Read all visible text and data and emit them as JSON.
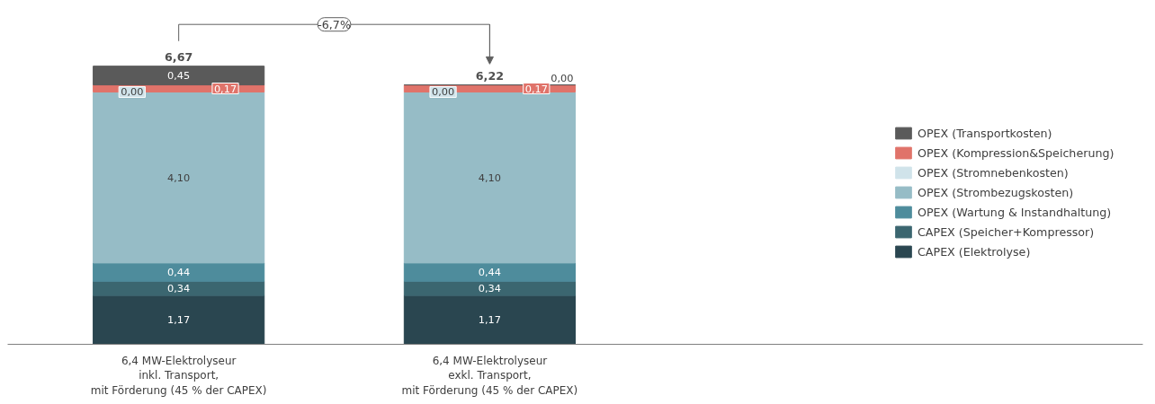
{
  "chart_data": {
    "type": "bar",
    "stacked": true,
    "categories": [
      "6,4 MW-Elektrolyseur\ninkl. Transport,\nmit Förderung (45 % der CAPEX)",
      "6,4 MW-Elektrolyseur\nexkl. Transport,\nmit Förderung (45 % der CAPEX)"
    ],
    "series": [
      {
        "name": "CAPEX (Elektrolyse)",
        "color": "#2a4650",
        "values": [
          1.17,
          1.17
        ],
        "value_labels": [
          "1,17",
          "1,17"
        ]
      },
      {
        "name": "CAPEX (Speicher+Kompressor)",
        "color": "#3b6670",
        "values": [
          0.34,
          0.34
        ],
        "value_labels": [
          "0,34",
          "0,34"
        ]
      },
      {
        "name": "OPEX (Wartung & Instandhaltung)",
        "color": "#4e8c9c",
        "values": [
          0.44,
          0.44
        ],
        "value_labels": [
          "0,44",
          "0,44"
        ]
      },
      {
        "name": "OPEX (Strombezugskosten)",
        "color": "#96bcc6",
        "values": [
          4.1,
          4.1
        ],
        "value_labels": [
          "4,10",
          "4,10"
        ]
      },
      {
        "name": "OPEX (Stromnebenkosten)",
        "color": "#d0e3ea",
        "values": [
          0.0,
          0.0
        ],
        "value_labels": [
          "0,00",
          "0,00"
        ]
      },
      {
        "name": "OPEX (Kompression&Speicherung)",
        "color": "#e0736a",
        "values": [
          0.17,
          0.17
        ],
        "value_labels": [
          "0,17",
          "0,17"
        ]
      },
      {
        "name": "OPEX (Transportkosten)",
        "color": "#5a5a5a",
        "values": [
          0.45,
          0.0
        ],
        "value_labels": [
          "0,45",
          "0,00"
        ]
      }
    ],
    "totals": [
      "6,67",
      "6,22"
    ],
    "annotations": [
      "-6,7%"
    ],
    "legend": "right",
    "grid": false
  }
}
